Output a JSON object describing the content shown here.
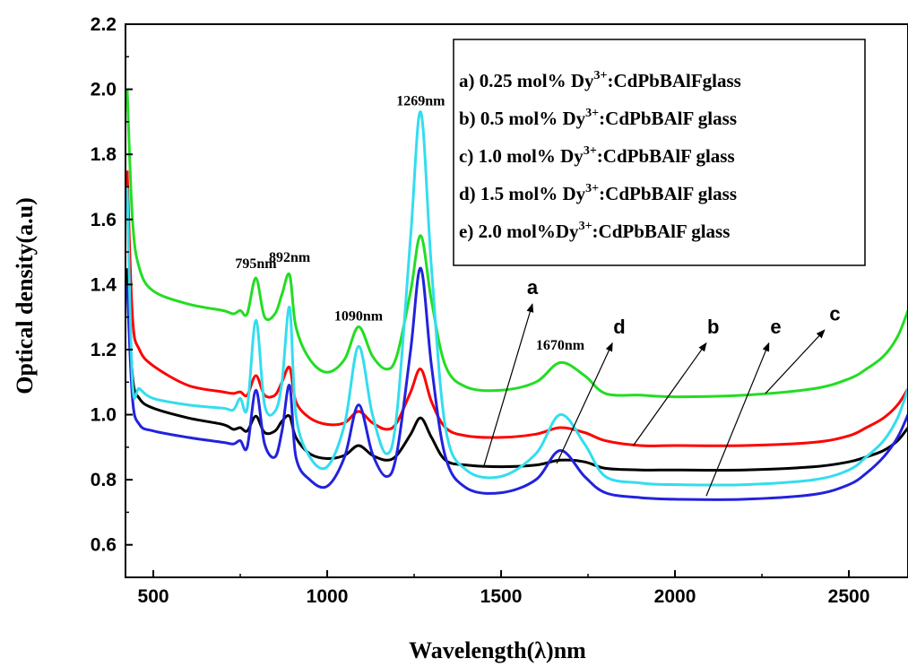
{
  "chart_data": {
    "type": "line",
    "xlabel": "Wavelength(λ)nm",
    "ylabel": "Optical density(a.u)",
    "xlim": [
      420,
      2670
    ],
    "ylim": [
      0.5,
      2.2
    ],
    "xticks": [
      500,
      1000,
      1500,
      2000,
      2500
    ],
    "xtick_labels": [
      "500",
      "1000",
      "1500",
      "2000",
      "2500"
    ],
    "yticks": [
      0.6,
      0.8,
      1.0,
      1.2,
      1.4,
      1.6,
      1.8,
      2.0,
      2.2
    ],
    "ytick_labels": [
      "0.6",
      "0.8",
      "1.0",
      "1.2",
      "1.4",
      "1.6",
      "1.8",
      "2.0",
      "2.2"
    ],
    "grid": false,
    "legend_position": "top-right",
    "legend": [
      {
        "prefix": "a) 0.25 mol% Dy",
        "sup": "3+",
        "suffix": ":CdPbBAlFglass"
      },
      {
        "prefix": "b) 0.5 mol% Dy",
        "sup": "3+",
        "suffix": ":CdPbBAlF glass"
      },
      {
        "prefix": "c) 1.0 mol% Dy",
        "sup": "3+",
        "suffix": ":CdPbBAlF glass"
      },
      {
        "prefix": "d) 1.5 mol% Dy",
        "sup": "3+",
        "suffix": ":CdPbBAlF glass"
      },
      {
        "prefix": "e) 2.0 mol%Dy",
        "sup": "3+",
        "suffix": ":CdPbBAlF glass"
      }
    ],
    "peak_labels": [
      {
        "text": "795nm",
        "x": 795,
        "y": 1.45
      },
      {
        "text": "892nm",
        "x": 892,
        "y": 1.47
      },
      {
        "text": "1090nm",
        "x": 1090,
        "y": 1.29
      },
      {
        "text": "1269nm",
        "x": 1269,
        "y": 1.95
      },
      {
        "text": "1670nm",
        "x": 1670,
        "y": 1.2
      }
    ],
    "curve_labels": [
      {
        "text": "a",
        "x": 1590,
        "y": 1.37,
        "from": [
          1590,
          1.34
        ],
        "to": [
          1450,
          0.84
        ]
      },
      {
        "text": "d",
        "x": 1840,
        "y": 1.25,
        "from": [
          1820,
          1.22
        ],
        "to": [
          1660,
          0.85
        ]
      },
      {
        "text": "b",
        "x": 2110,
        "y": 1.25,
        "from": [
          2090,
          1.22
        ],
        "to": [
          1880,
          0.905
        ]
      },
      {
        "text": "e",
        "x": 2290,
        "y": 1.25,
        "from": [
          2270,
          1.22
        ],
        "to": [
          2090,
          0.75
        ]
      },
      {
        "text": "c",
        "x": 2460,
        "y": 1.29,
        "from": [
          2430,
          1.26
        ],
        "to": [
          2260,
          1.065
        ]
      }
    ],
    "series": [
      {
        "name": "a",
        "color": "#000000",
        "x": [
          425,
          440,
          460,
          500,
          600,
          700,
          730,
          750,
          770,
          795,
          820,
          850,
          870,
          892,
          910,
          950,
          1000,
          1050,
          1090,
          1130,
          1170,
          1200,
          1240,
          1269,
          1300,
          1340,
          1400,
          1500,
          1600,
          1670,
          1740,
          1800,
          1900,
          2000,
          2200,
          2400,
          2500,
          2550,
          2600,
          2640,
          2670
        ],
        "values": [
          1.45,
          1.12,
          1.05,
          1.02,
          0.99,
          0.97,
          0.955,
          0.96,
          0.95,
          0.995,
          0.945,
          0.95,
          0.98,
          0.995,
          0.93,
          0.88,
          0.865,
          0.875,
          0.905,
          0.875,
          0.86,
          0.875,
          0.94,
          0.99,
          0.93,
          0.86,
          0.845,
          0.84,
          0.845,
          0.86,
          0.855,
          0.835,
          0.83,
          0.83,
          0.83,
          0.84,
          0.855,
          0.87,
          0.89,
          0.92,
          0.96
        ]
      },
      {
        "name": "b",
        "color": "#ff0000",
        "x": [
          425,
          440,
          460,
          500,
          600,
          700,
          730,
          750,
          770,
          795,
          820,
          850,
          870,
          892,
          910,
          950,
          1000,
          1050,
          1090,
          1130,
          1170,
          1200,
          1240,
          1269,
          1300,
          1340,
          1400,
          1500,
          1600,
          1670,
          1740,
          1800,
          1900,
          2000,
          2200,
          2400,
          2500,
          2550,
          2600,
          2640,
          2670
        ],
        "values": [
          1.75,
          1.3,
          1.2,
          1.15,
          1.09,
          1.07,
          1.065,
          1.07,
          1.06,
          1.12,
          1.06,
          1.06,
          1.1,
          1.145,
          1.04,
          0.99,
          0.97,
          0.975,
          1.01,
          0.975,
          0.955,
          0.975,
          1.07,
          1.14,
          1.04,
          0.96,
          0.935,
          0.93,
          0.94,
          0.96,
          0.945,
          0.92,
          0.905,
          0.905,
          0.905,
          0.915,
          0.935,
          0.96,
          0.99,
          1.03,
          1.08
        ]
      },
      {
        "name": "c",
        "color": "#22dd22",
        "x": [
          425,
          440,
          460,
          500,
          600,
          700,
          730,
          750,
          770,
          795,
          820,
          850,
          870,
          892,
          910,
          950,
          1000,
          1050,
          1090,
          1130,
          1170,
          1200,
          1240,
          1269,
          1300,
          1340,
          1400,
          1500,
          1600,
          1670,
          1740,
          1800,
          1900,
          2000,
          2200,
          2400,
          2500,
          2550,
          2600,
          2640,
          2670
        ],
        "values": [
          2.0,
          1.6,
          1.45,
          1.38,
          1.34,
          1.32,
          1.31,
          1.32,
          1.31,
          1.42,
          1.3,
          1.31,
          1.37,
          1.43,
          1.27,
          1.17,
          1.13,
          1.17,
          1.27,
          1.18,
          1.14,
          1.18,
          1.38,
          1.55,
          1.35,
          1.15,
          1.085,
          1.075,
          1.1,
          1.16,
          1.12,
          1.065,
          1.06,
          1.055,
          1.06,
          1.08,
          1.11,
          1.14,
          1.18,
          1.24,
          1.32
        ]
      },
      {
        "name": "d",
        "color": "#2222dd",
        "x": [
          425,
          440,
          460,
          500,
          600,
          700,
          730,
          750,
          770,
          795,
          820,
          850,
          870,
          892,
          910,
          950,
          1000,
          1050,
          1090,
          1130,
          1170,
          1200,
          1240,
          1269,
          1300,
          1340,
          1400,
          1500,
          1600,
          1670,
          1740,
          1800,
          1900,
          2000,
          2200,
          2400,
          2500,
          2550,
          2600,
          2640,
          2670
        ],
        "values": [
          1.4,
          1.05,
          0.97,
          0.95,
          0.93,
          0.915,
          0.91,
          0.92,
          0.9,
          1.075,
          0.91,
          0.87,
          0.95,
          1.09,
          0.87,
          0.8,
          0.78,
          0.87,
          1.03,
          0.88,
          0.81,
          0.88,
          1.2,
          1.45,
          1.15,
          0.87,
          0.775,
          0.76,
          0.8,
          0.89,
          0.81,
          0.76,
          0.745,
          0.74,
          0.74,
          0.755,
          0.785,
          0.82,
          0.87,
          0.93,
          1.0
        ]
      },
      {
        "name": "e",
        "color": "#33ddee",
        "x": [
          425,
          440,
          460,
          500,
          600,
          700,
          730,
          750,
          770,
          795,
          820,
          850,
          870,
          892,
          910,
          950,
          1000,
          1050,
          1090,
          1130,
          1170,
          1200,
          1240,
          1269,
          1300,
          1340,
          1400,
          1500,
          1600,
          1670,
          1740,
          1800,
          1900,
          2000,
          2200,
          2400,
          2500,
          2550,
          2600,
          2640,
          2670
        ],
        "values": [
          1.7,
          1.1,
          1.08,
          1.05,
          1.03,
          1.02,
          1.015,
          1.05,
          1.02,
          1.29,
          1.03,
          1.01,
          1.1,
          1.33,
          1.0,
          0.87,
          0.84,
          0.97,
          1.21,
          1.0,
          0.88,
          1.0,
          1.55,
          1.93,
          1.45,
          0.96,
          0.83,
          0.81,
          0.88,
          1.0,
          0.91,
          0.81,
          0.79,
          0.785,
          0.785,
          0.8,
          0.83,
          0.87,
          0.92,
          0.99,
          1.08
        ]
      }
    ]
  }
}
